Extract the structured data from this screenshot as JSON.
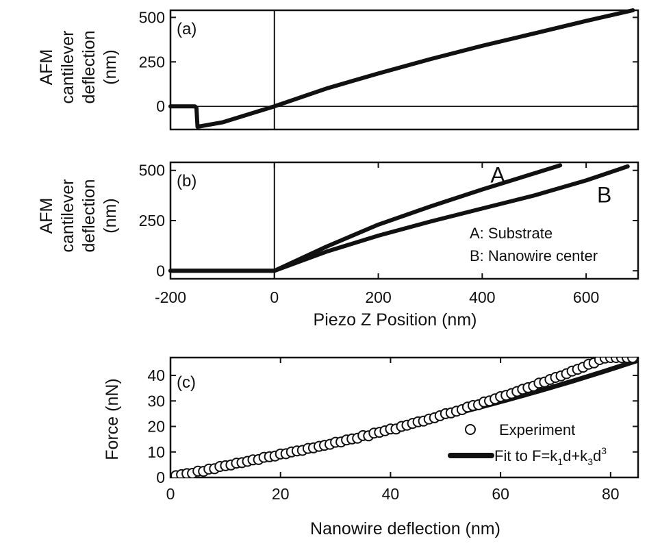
{
  "chart_data": [
    {
      "type": "line",
      "panel_label": "(a)",
      "ylabel_lines": [
        "AFM",
        "cantilever",
        "deflection",
        "(nm)"
      ],
      "xlim": [
        -200,
        700
      ],
      "ylim": [
        -130,
        540
      ],
      "yticks": [
        0,
        250,
        500
      ],
      "ytick_labels": [
        "0",
        "250",
        "500"
      ],
      "series": [
        {
          "points": [
            [
              -200,
              0
            ],
            [
              -153,
              0
            ],
            [
              -150,
              -8
            ],
            [
              -148,
              -115
            ],
            [
              -100,
              -90
            ],
            [
              0,
              0
            ],
            [
              100,
              100
            ],
            [
              200,
              185
            ],
            [
              300,
              265
            ],
            [
              400,
              340
            ],
            [
              500,
              410
            ],
            [
              600,
              480
            ],
            [
              690,
              540
            ]
          ]
        }
      ]
    },
    {
      "type": "line",
      "panel_label": "(b)",
      "ylabel_lines": [
        "AFM",
        "cantilever",
        "deflection",
        "(nm)"
      ],
      "xlabel": "Piezo Z Position (nm)",
      "xlim": [
        -200,
        700
      ],
      "ylim": [
        -40,
        540
      ],
      "xticks": [
        -200,
        0,
        200,
        400,
        600
      ],
      "xtick_labels": [
        "-200",
        "0",
        "200",
        "400",
        "600"
      ],
      "yticks": [
        0,
        250,
        500
      ],
      "ytick_labels": [
        "0",
        "250",
        "500"
      ],
      "curve_labels": [
        {
          "text": "A",
          "x": 430,
          "y": 440
        },
        {
          "text": "B",
          "x": 635,
          "y": 340
        }
      ],
      "legend_lines": [
        "A: Substrate",
        "B: Nanowire center"
      ],
      "series": [
        {
          "name": "A",
          "points": [
            [
              -200,
              0
            ],
            [
              0,
              0
            ],
            [
              100,
              120
            ],
            [
              200,
              230
            ],
            [
              300,
              320
            ],
            [
              400,
              405
            ],
            [
              550,
              525
            ]
          ]
        },
        {
          "name": "B",
          "points": [
            [
              -200,
              0
            ],
            [
              0,
              0
            ],
            [
              100,
              95
            ],
            [
              200,
              175
            ],
            [
              300,
              245
            ],
            [
              400,
              310
            ],
            [
              500,
              375
            ],
            [
              600,
              450
            ],
            [
              680,
              520
            ]
          ]
        }
      ]
    },
    {
      "type": "scatter",
      "panel_label": "(c)",
      "xlabel": "Nanowire deflection (nm)",
      "ylabel": "Force (nN)",
      "xlim": [
        0,
        85
      ],
      "ylim": [
        0,
        47
      ],
      "xticks": [
        0,
        20,
        40,
        60,
        80
      ],
      "xtick_labels": [
        "0",
        "20",
        "40",
        "60",
        "80"
      ],
      "yticks": [
        0,
        10,
        20,
        30,
        40
      ],
      "ytick_labels": [
        "0",
        "10",
        "20",
        "30",
        "40"
      ],
      "legend": {
        "experiment": "Experiment",
        "fit_prefix": "Fit to F=k",
        "fit_sub1": "1",
        "fit_mid": "d+k",
        "fit_sub2": "3",
        "fit_d": "d",
        "fit_sup": "3"
      },
      "fit_coefficients": {
        "k1": 0.45,
        "k3": 1.25e-05
      },
      "series": [
        {
          "name": "Experiment",
          "x": [
            1,
            2,
            3,
            4,
            5,
            6,
            7,
            8,
            9,
            10,
            11,
            12,
            13,
            14,
            15,
            16,
            17,
            18,
            19,
            20,
            21,
            22,
            23,
            24,
            25,
            26,
            27,
            28,
            29,
            30,
            31,
            32,
            33,
            34,
            35,
            36,
            37,
            38,
            39,
            40,
            41,
            42,
            43,
            44,
            45,
            46,
            47,
            48,
            49,
            50,
            51,
            52,
            53,
            54,
            55,
            56,
            57,
            58,
            59,
            60,
            61,
            62,
            63,
            64,
            65,
            66,
            67,
            68,
            69,
            70,
            71,
            72,
            73,
            74,
            75,
            76,
            77,
            78,
            79,
            80,
            81,
            82,
            83,
            84
          ],
          "y": [
            0.7,
            1.1,
            1.5,
            1.6,
            2.5,
            2.4,
            3.3,
            3.4,
            4.3,
            4.6,
            4.9,
            5.6,
            5.8,
            6.3,
            6.9,
            7.0,
            7.9,
            8.1,
            8.4,
            9.2,
            9.3,
            10.0,
            10.4,
            10.6,
            11.4,
            11.6,
            12.2,
            12.6,
            13.0,
            13.8,
            13.9,
            14.7,
            15.1,
            15.4,
            16.4,
            16.3,
            17.4,
            17.7,
            18.3,
            19.0,
            19.0,
            20.0,
            20.5,
            21.2,
            21.8,
            22.1,
            22.9,
            23.4,
            24.2,
            25.0,
            25.3,
            26.0,
            26.6,
            27.6,
            28.2,
            28.5,
            29.6,
            30.0,
            30.8,
            31.7,
            32.2,
            32.9,
            33.7,
            34.6,
            35.2,
            35.8,
            37.0,
            37.4,
            38.4,
            39.2,
            39.8,
            40.7,
            41.7,
            42.4,
            43.2,
            44.4,
            44.9,
            46.2,
            46.8,
            47.0,
            47.0,
            47.0,
            47.0,
            47.0
          ]
        }
      ]
    }
  ]
}
